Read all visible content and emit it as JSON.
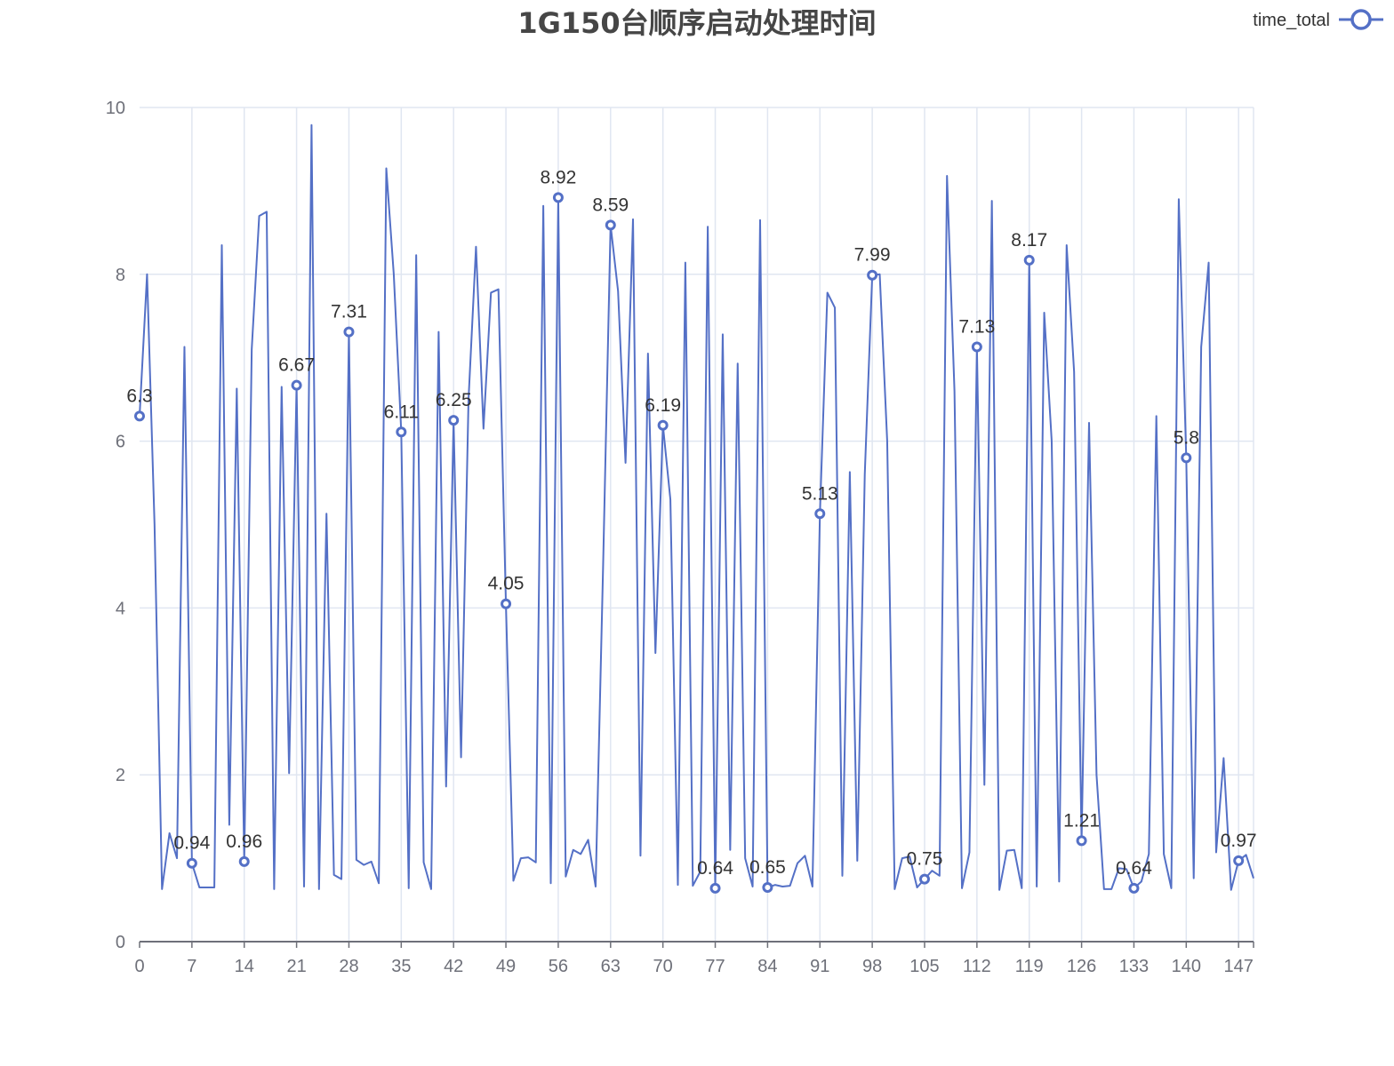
{
  "chart_data": {
    "type": "line",
    "title": "1G150台顺序启动处理时间",
    "xlabel": "",
    "ylabel": "",
    "ylim": [
      0,
      10
    ],
    "y_ticks": [
      0,
      2,
      4,
      6,
      8,
      10
    ],
    "x_ticks": [
      0,
      7,
      14,
      21,
      28,
      35,
      42,
      49,
      56,
      63,
      70,
      77,
      84,
      91,
      98,
      105,
      112,
      119,
      126,
      133,
      140,
      147
    ],
    "xlim": [
      0,
      149
    ],
    "grid": true,
    "legend_position": "top-right",
    "series": [
      {
        "name": "time_total",
        "color": "#5470c6",
        "x": [
          0,
          1,
          2,
          3,
          4,
          5,
          6,
          7,
          8,
          9,
          10,
          11,
          12,
          13,
          14,
          15,
          16,
          17,
          18,
          19,
          20,
          21,
          22,
          23,
          24,
          25,
          26,
          27,
          28,
          29,
          30,
          31,
          32,
          33,
          34,
          35,
          36,
          37,
          38,
          39,
          40,
          41,
          42,
          43,
          44,
          45,
          46,
          47,
          48,
          49,
          50,
          51,
          52,
          53,
          54,
          55,
          56,
          57,
          58,
          59,
          60,
          61,
          62,
          63,
          64,
          65,
          66,
          67,
          68,
          69,
          70,
          71,
          72,
          73,
          74,
          75,
          76,
          77,
          78,
          79,
          80,
          81,
          82,
          83,
          84,
          85,
          86,
          87,
          88,
          89,
          90,
          91,
          92,
          93,
          94,
          95,
          96,
          97,
          98,
          99,
          100,
          101,
          102,
          103,
          104,
          105,
          106,
          107,
          108,
          109,
          110,
          111,
          112,
          113,
          114,
          115,
          116,
          117,
          118,
          119,
          120,
          121,
          122,
          123,
          124,
          125,
          126,
          127,
          128,
          129,
          130,
          131,
          132,
          133,
          134,
          135,
          136,
          137,
          138,
          139,
          140,
          141,
          142,
          143,
          144,
          145,
          146,
          147,
          148,
          149
        ],
        "values": [
          6.3,
          8.0,
          5.0,
          0.63,
          1.3,
          1.0,
          7.13,
          0.94,
          0.65,
          0.65,
          0.65,
          8.35,
          1.4,
          6.63,
          0.96,
          7.1,
          8.7,
          8.75,
          0.63,
          6.65,
          2.02,
          6.67,
          0.66,
          9.79,
          0.63,
          5.13,
          0.8,
          0.75,
          7.31,
          0.98,
          0.92,
          0.96,
          0.7,
          9.27,
          8.0,
          6.11,
          0.64,
          8.23,
          0.95,
          0.63,
          7.31,
          1.86,
          6.25,
          2.21,
          6.5,
          8.33,
          6.15,
          7.78,
          7.82,
          4.05,
          0.73,
          1.0,
          1.01,
          0.95,
          8.82,
          0.7,
          8.92,
          0.78,
          1.1,
          1.05,
          1.22,
          0.66,
          4.5,
          8.59,
          7.8,
          5.74,
          8.66,
          1.03,
          7.05,
          3.46,
          6.19,
          5.3,
          0.68,
          8.14,
          0.67,
          0.84,
          8.57,
          0.64,
          7.28,
          1.1,
          6.93,
          1.0,
          0.66,
          8.65,
          0.65,
          0.68,
          0.66,
          0.67,
          0.94,
          1.03,
          0.66,
          5.13,
          7.78,
          7.6,
          0.79,
          5.63,
          0.97,
          5.6,
          7.99,
          8.0,
          6.0,
          0.63,
          1.0,
          1.02,
          0.65,
          0.75,
          0.85,
          0.79,
          9.18,
          6.6,
          0.64,
          1.07,
          7.13,
          1.88,
          8.88,
          0.62,
          1.09,
          1.1,
          0.64,
          8.17,
          0.66,
          7.54,
          6.0,
          0.72,
          8.35,
          6.83,
          1.21,
          6.22,
          2.0,
          0.63,
          0.63,
          0.88,
          0.87,
          0.64,
          0.72,
          1.05,
          6.3,
          1.05,
          0.64,
          8.9,
          5.8,
          0.76,
          7.13,
          8.14,
          1.07,
          2.2,
          0.62,
          0.97,
          1.04,
          0.76
        ],
        "label_indices": [
          0,
          7,
          14,
          21,
          28,
          35,
          42,
          49,
          56,
          63,
          70,
          77,
          84,
          91,
          98,
          105,
          112,
          119,
          126,
          133,
          140,
          147
        ],
        "labels": [
          "6.3",
          "0.94",
          "0.96",
          "6.67",
          "7.31",
          "6.11",
          "6.25",
          "4.05",
          "8.92",
          "8.59",
          "6.19",
          "0.64",
          "0.65",
          "5.13",
          "7.99",
          "0.75",
          "7.13",
          "8.17",
          "1.21",
          "0.64",
          "5.8",
          "0.97"
        ]
      }
    ]
  }
}
